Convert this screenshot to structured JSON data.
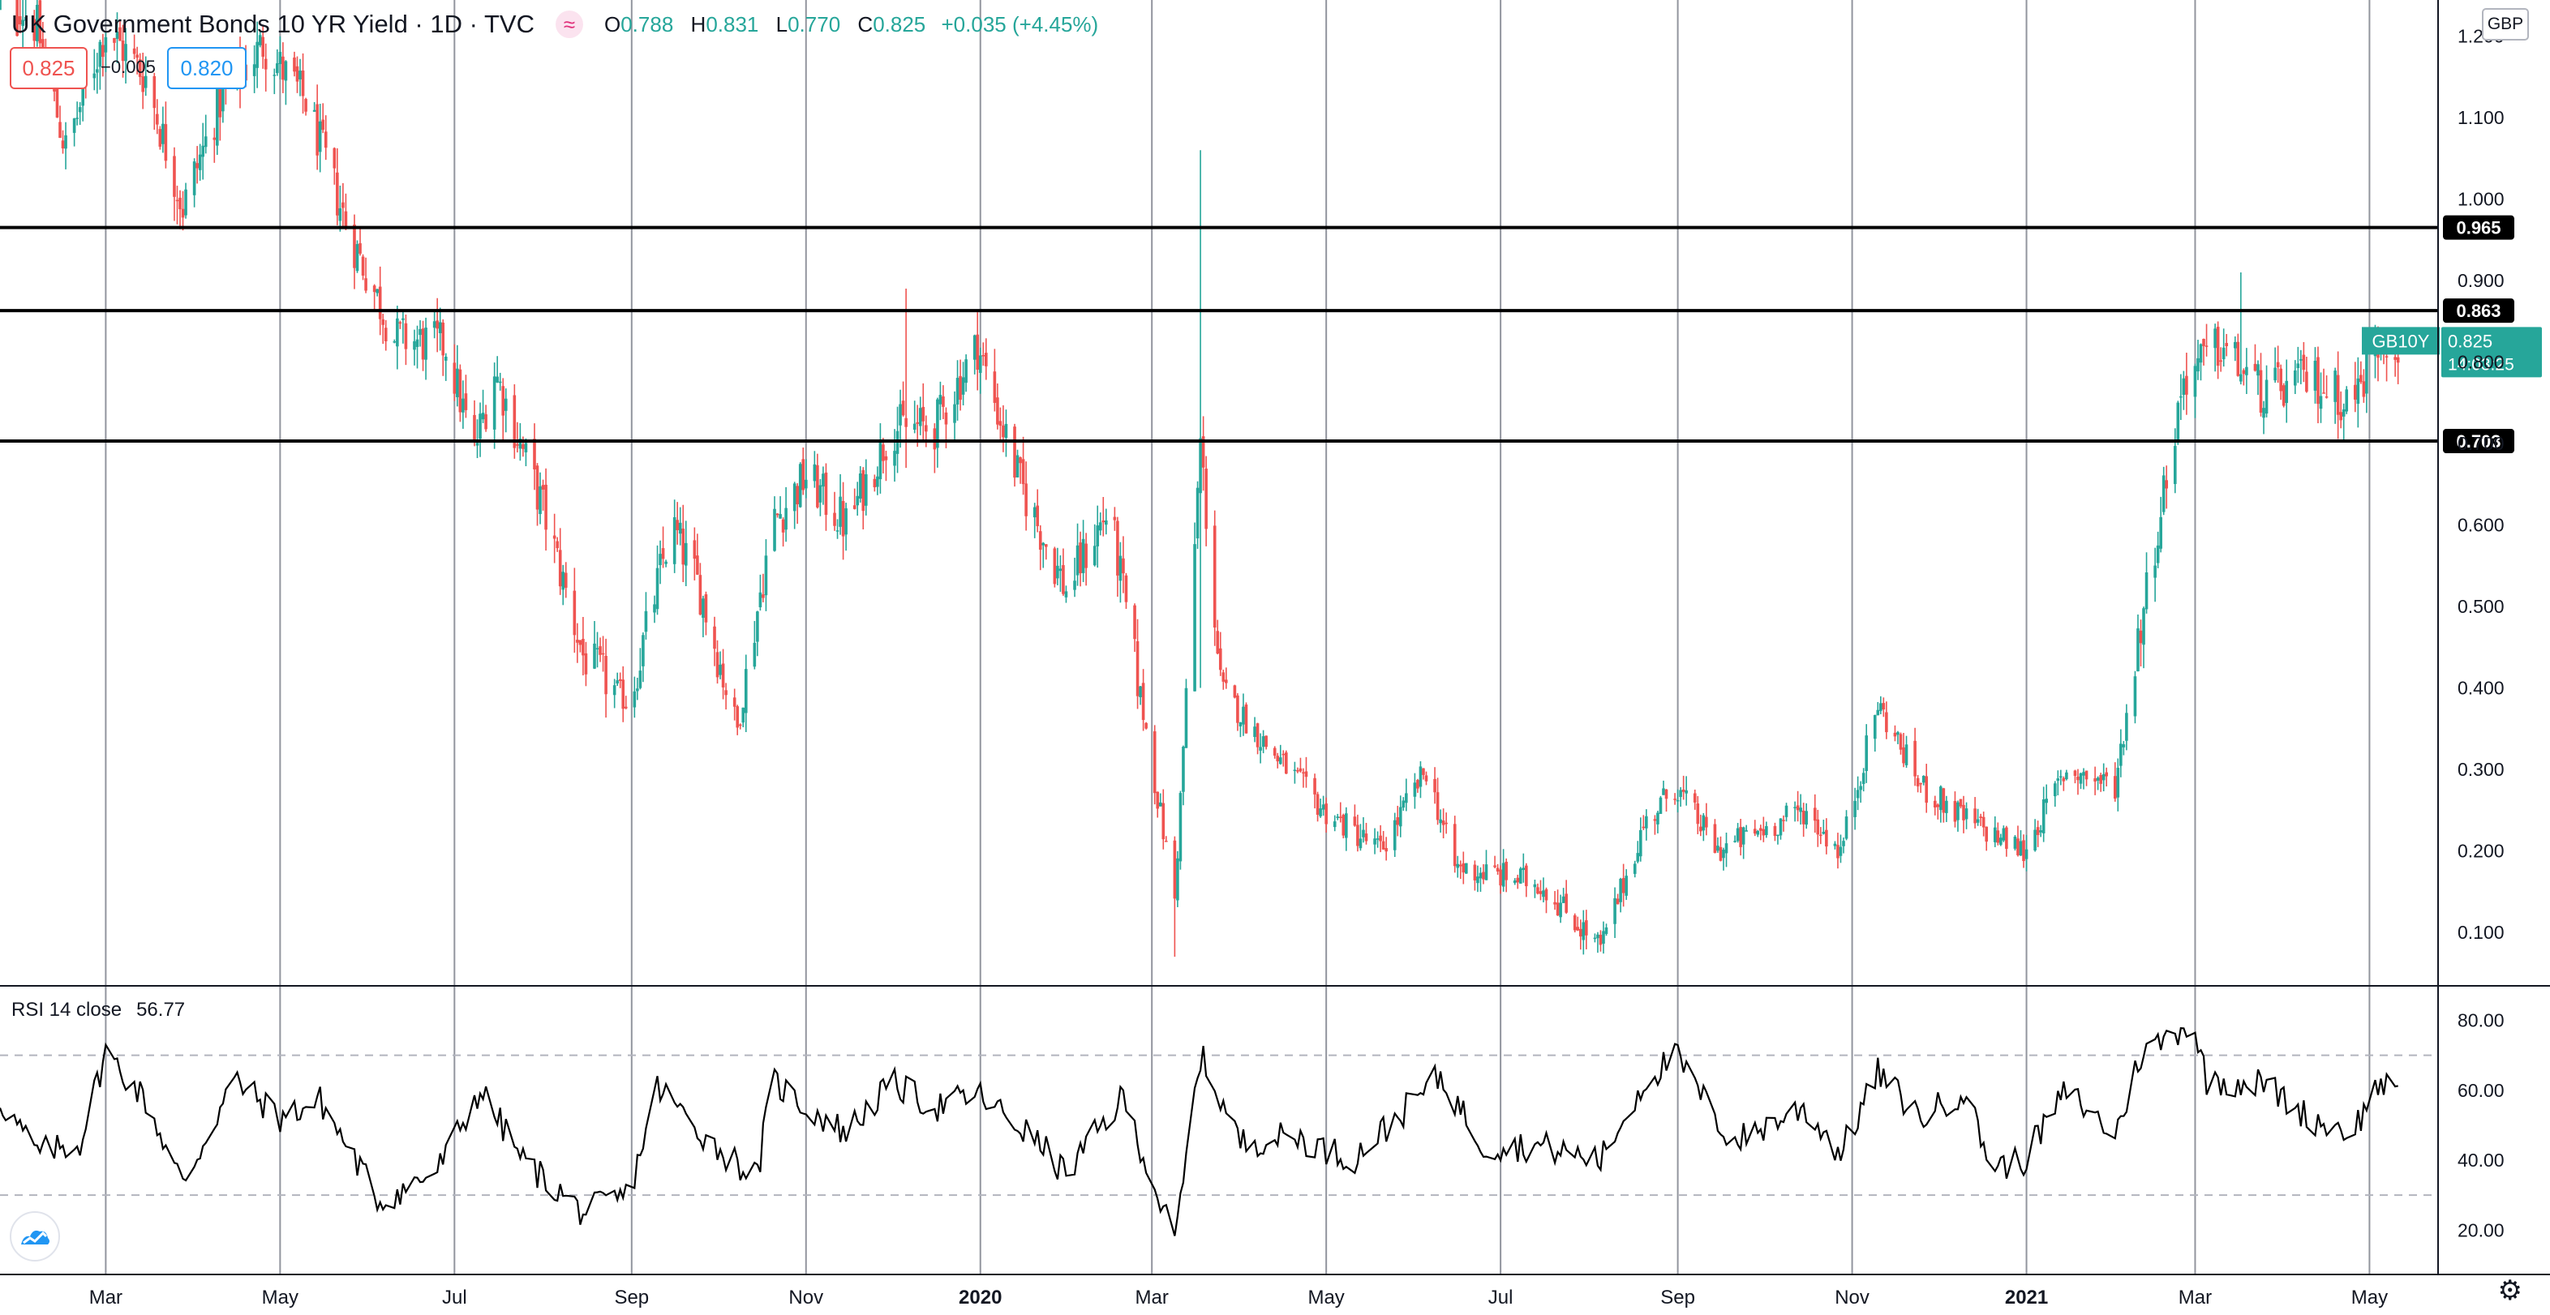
{
  "header": {
    "title": "UK Government Bonds 10 YR Yield · 1D · TVC",
    "symbol_icon": "wave-icon",
    "open_label": "O",
    "open": "0.788",
    "high_label": "H",
    "high": "0.831",
    "low_label": "L",
    "low": "0.770",
    "close_label": "C",
    "close": "0.825",
    "change": "+0.035 (+4.45%)"
  },
  "quote": {
    "sell": "0.825",
    "spread": "−0.005",
    "buy": "0.820"
  },
  "currency": "GBP",
  "rsi_legend": {
    "label": "RSI 14 close",
    "value": "56.77"
  },
  "colors": {
    "up": "#26a69a",
    "down": "#ef5350",
    "level_line": "#000000",
    "grid": "#787b86",
    "rsi_line": "#000000"
  },
  "icons": {
    "logo": "tradingview-logo-icon",
    "settings": "gear-icon"
  },
  "chart_data": {
    "type": "candlestick",
    "x_range": [
      "2019-01-23",
      "2021-05-25"
    ],
    "price_ylim": [
      0.0,
      1.2
    ],
    "price_ticks": [
      "0.100",
      "0.200",
      "0.300",
      "0.400",
      "0.500",
      "0.600",
      "0.700",
      "0.800",
      "0.900",
      "1.000",
      "1.100",
      "1.200"
    ],
    "x_ticks": [
      {
        "date": "2019-03-01",
        "label": "Mar"
      },
      {
        "date": "2019-05-01",
        "label": "May"
      },
      {
        "date": "2019-07-01",
        "label": "Jul"
      },
      {
        "date": "2019-09-01",
        "label": "Sep"
      },
      {
        "date": "2019-11-01",
        "label": "Nov"
      },
      {
        "date": "2020-01-01",
        "label": "2020",
        "bold": true
      },
      {
        "date": "2020-03-01",
        "label": "Mar"
      },
      {
        "date": "2020-05-01",
        "label": "May"
      },
      {
        "date": "2020-07-01",
        "label": "Jul"
      },
      {
        "date": "2020-09-01",
        "label": "Sep"
      },
      {
        "date": "2020-11-01",
        "label": "Nov"
      },
      {
        "date": "2021-01-01",
        "label": "2021",
        "bold": true
      },
      {
        "date": "2021-03-01",
        "label": "Mar"
      },
      {
        "date": "2021-05-01",
        "label": "May"
      }
    ],
    "levels": [
      {
        "value": 0.965,
        "label": "0.965"
      },
      {
        "value": 0.863,
        "label": "0.863"
      },
      {
        "value": 0.703,
        "label": "0.703"
      }
    ],
    "last_price": {
      "value": 0.825,
      "label": "0.825",
      "symbol": "GB10Y",
      "countdown": "14:03:25"
    },
    "price_path": [
      [
        "2019-01-23",
        1.27
      ],
      [
        "2019-02-05",
        1.21
      ],
      [
        "2019-02-15",
        1.06
      ],
      [
        "2019-03-01",
        1.21
      ],
      [
        "2019-03-15",
        1.15
      ],
      [
        "2019-03-28",
        0.99
      ],
      [
        "2019-04-10",
        1.12
      ],
      [
        "2019-04-25",
        1.19
      ],
      [
        "2019-05-10",
        1.12
      ],
      [
        "2019-05-25",
        0.96
      ],
      [
        "2019-06-10",
        0.83
      ],
      [
        "2019-06-28",
        0.82
      ],
      [
        "2019-07-08",
        0.69
      ],
      [
        "2019-07-15",
        0.79
      ],
      [
        "2019-08-01",
        0.62
      ],
      [
        "2019-08-15",
        0.44
      ],
      [
        "2019-08-31",
        0.38
      ],
      [
        "2019-09-15",
        0.6
      ],
      [
        "2019-09-25",
        0.52
      ],
      [
        "2019-10-08",
        0.35
      ],
      [
        "2019-10-20",
        0.6
      ],
      [
        "2019-11-01",
        0.66
      ],
      [
        "2019-11-15",
        0.6
      ],
      [
        "2019-12-01",
        0.72
      ],
      [
        "2019-12-16",
        0.72
      ],
      [
        "2019-12-31",
        0.82
      ],
      [
        "2020-01-15",
        0.65
      ],
      [
        "2020-01-31",
        0.52
      ],
      [
        "2020-02-15",
        0.62
      ],
      [
        "2020-03-09",
        0.14
      ],
      [
        "2020-03-18",
        0.7
      ],
      [
        "2020-03-25",
        0.4
      ],
      [
        "2020-04-10",
        0.33
      ],
      [
        "2020-04-30",
        0.25
      ],
      [
        "2020-05-20",
        0.2
      ],
      [
        "2020-06-05",
        0.3
      ],
      [
        "2020-06-15",
        0.18
      ],
      [
        "2020-07-15",
        0.16
      ],
      [
        "2020-08-05",
        0.08
      ],
      [
        "2020-08-20",
        0.23
      ],
      [
        "2020-08-31",
        0.28
      ],
      [
        "2020-09-15",
        0.2
      ],
      [
        "2020-10-15",
        0.25
      ],
      [
        "2020-10-28",
        0.2
      ],
      [
        "2020-11-10",
        0.38
      ],
      [
        "2020-11-25",
        0.28
      ],
      [
        "2020-12-10",
        0.24
      ],
      [
        "2020-12-31",
        0.2
      ],
      [
        "2021-01-15",
        0.3
      ],
      [
        "2021-02-01",
        0.28
      ],
      [
        "2021-02-10",
        0.48
      ],
      [
        "2021-02-25",
        0.78
      ],
      [
        "2021-03-10",
        0.82
      ],
      [
        "2021-03-25",
        0.76
      ],
      [
        "2021-04-10",
        0.78
      ],
      [
        "2021-04-25",
        0.75
      ],
      [
        "2021-05-05",
        0.83
      ],
      [
        "2021-05-11",
        0.825
      ]
    ],
    "spikes": [
      {
        "date": "2019-08-31",
        "high": 0.36,
        "low": 0.26
      },
      {
        "date": "2019-12-06",
        "high": 0.89,
        "low": 0.67
      },
      {
        "date": "2020-03-09",
        "high": 0.16,
        "low": 0.07
      },
      {
        "date": "2020-03-18",
        "high": 1.06,
        "low": 0.4
      },
      {
        "date": "2021-03-17",
        "high": 0.91,
        "low": 0.8
      }
    ],
    "rsi": {
      "ylim": [
        10,
        90
      ],
      "ticks": [
        "20.00",
        "40.00",
        "60.00",
        "80.00"
      ],
      "bands": [
        30,
        70
      ],
      "path": [
        [
          "2019-01-23",
          57
        ],
        [
          "2019-02-05",
          42
        ],
        [
          "2019-02-20",
          45
        ],
        [
          "2019-03-01",
          71
        ],
        [
          "2019-03-15",
          57
        ],
        [
          "2019-03-28",
          33
        ],
        [
          "2019-04-15",
          63
        ],
        [
          "2019-05-01",
          52
        ],
        [
          "2019-05-15",
          57
        ],
        [
          "2019-06-05",
          28
        ],
        [
          "2019-06-25",
          37
        ],
        [
          "2019-07-10",
          60
        ],
        [
          "2019-07-25",
          40
        ],
        [
          "2019-08-15",
          25
        ],
        [
          "2019-08-31",
          30
        ],
        [
          "2019-09-10",
          61
        ],
        [
          "2019-09-30",
          44
        ],
        [
          "2019-10-15",
          35
        ],
        [
          "2019-10-20",
          63
        ],
        [
          "2019-11-01",
          55
        ],
        [
          "2019-11-15",
          48
        ],
        [
          "2019-12-01",
          62
        ],
        [
          "2019-12-16",
          55
        ],
        [
          "2019-12-31",
          59
        ],
        [
          "2020-01-20",
          46
        ],
        [
          "2020-01-31",
          36
        ],
        [
          "2020-02-20",
          58
        ],
        [
          "2020-03-09",
          16
        ],
        [
          "2020-03-18",
          70
        ],
        [
          "2020-04-01",
          45
        ],
        [
          "2020-04-20",
          47
        ],
        [
          "2020-05-10",
          40
        ],
        [
          "2020-06-10",
          64
        ],
        [
          "2020-06-25",
          44
        ],
        [
          "2020-07-15",
          44
        ],
        [
          "2020-08-05",
          40
        ],
        [
          "2020-08-20",
          62
        ],
        [
          "2020-08-31",
          70
        ],
        [
          "2020-09-20",
          45
        ],
        [
          "2020-10-15",
          55
        ],
        [
          "2020-10-28",
          42
        ],
        [
          "2020-11-10",
          65
        ],
        [
          "2020-11-25",
          52
        ],
        [
          "2020-12-10",
          60
        ],
        [
          "2020-12-20",
          38
        ],
        [
          "2020-12-31",
          40
        ],
        [
          "2021-01-15",
          60
        ],
        [
          "2021-02-01",
          47
        ],
        [
          "2021-02-10",
          70
        ],
        [
          "2021-02-28",
          80
        ],
        [
          "2021-03-05",
          63
        ],
        [
          "2021-03-25",
          62
        ],
        [
          "2021-04-10",
          52
        ],
        [
          "2021-04-25",
          48
        ],
        [
          "2021-05-05",
          63
        ],
        [
          "2021-05-11",
          57
        ]
      ]
    }
  }
}
